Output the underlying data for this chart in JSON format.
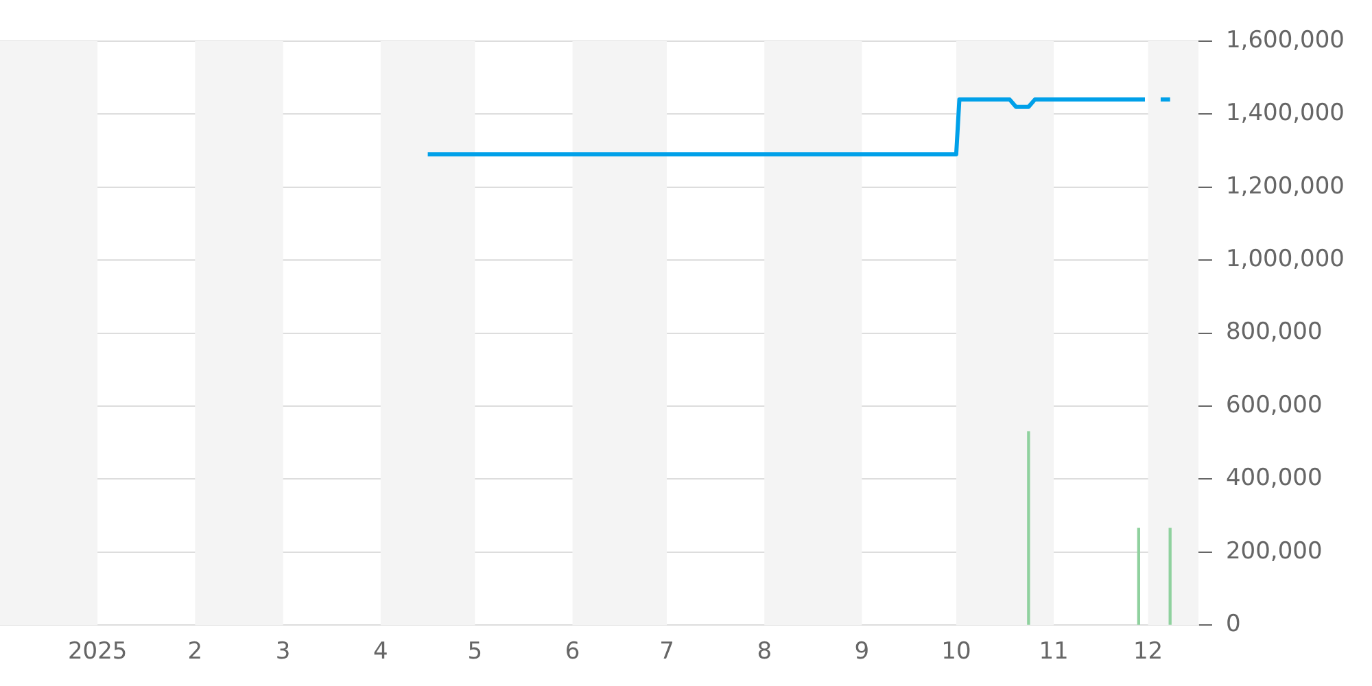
{
  "chart_data": {
    "type": "line",
    "xlim": [
      "2024-12-01",
      "2025-12-17"
    ],
    "xticks": [
      {
        "value": "2025-01-01",
        "label": "2025"
      },
      {
        "value": "2025-02-01",
        "label": "2"
      },
      {
        "value": "2025-03-01",
        "label": "3"
      },
      {
        "value": "2025-04-01",
        "label": "4"
      },
      {
        "value": "2025-05-01",
        "label": "5"
      },
      {
        "value": "2025-06-01",
        "label": "6"
      },
      {
        "value": "2025-07-01",
        "label": "7"
      },
      {
        "value": "2025-08-01",
        "label": "8"
      },
      {
        "value": "2025-09-01",
        "label": "9"
      },
      {
        "value": "2025-10-01",
        "label": "10"
      },
      {
        "value": "2025-11-01",
        "label": "11"
      },
      {
        "value": "2025-12-01",
        "label": "12"
      }
    ],
    "ylim": [
      0,
      1600000
    ],
    "yticks": [
      {
        "value": 0,
        "label": "0"
      },
      {
        "value": 200000,
        "label": "200,000"
      },
      {
        "value": 400000,
        "label": "400,000"
      },
      {
        "value": 600000,
        "label": "600,000"
      },
      {
        "value": 800000,
        "label": "800,000"
      },
      {
        "value": 1000000,
        "label": "1,000,000"
      },
      {
        "value": 1200000,
        "label": "1,200,000"
      },
      {
        "value": 1400000,
        "label": "1,400,000"
      },
      {
        "value": 1600000,
        "label": "1,600,000"
      }
    ],
    "grid": "y",
    "legend": false,
    "marker": "none",
    "line_style": "solid",
    "bands": [
      {
        "axis": "x",
        "from": "2024-12-01",
        "to": "2025-01-01",
        "color": "#f4f4f4"
      },
      {
        "axis": "x",
        "from": "2025-02-01",
        "to": "2025-03-01",
        "color": "#f4f4f4"
      },
      {
        "axis": "x",
        "from": "2025-04-01",
        "to": "2025-05-01",
        "color": "#f4f4f4"
      },
      {
        "axis": "x",
        "from": "2025-06-01",
        "to": "2025-07-01",
        "color": "#f4f4f4"
      },
      {
        "axis": "x",
        "from": "2025-08-01",
        "to": "2025-09-01",
        "color": "#f4f4f4"
      },
      {
        "axis": "x",
        "from": "2025-10-01",
        "to": "2025-11-01",
        "color": "#f4f4f4"
      },
      {
        "axis": "x",
        "from": "2025-12-01",
        "to": "2025-12-17",
        "color": "#f4f4f4"
      }
    ],
    "series": [
      {
        "type": "bar",
        "color": "#8fd19e",
        "x": [
          "2025-10-24",
          "2025-11-28",
          "2025-12-08"
        ],
        "values": [
          530000,
          265000,
          265000
        ]
      },
      {
        "color": "#00a0e9",
        "x": [
          "2025-04-16",
          "2025-10-01",
          "2025-10-02",
          "2025-10-18",
          "2025-10-20",
          "2025-10-24",
          "2025-10-26",
          "2025-11-30",
          "2025-12-02",
          "2025-12-05",
          "2025-12-08"
        ],
        "values": [
          1290000,
          1290000,
          1440000,
          1440000,
          1420000,
          1420000,
          1440000,
          1440000,
          null,
          1440000,
          1440000
        ]
      }
    ]
  }
}
